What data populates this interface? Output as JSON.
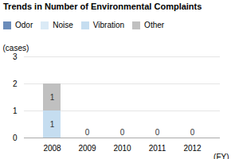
{
  "chart_data": {
    "type": "bar",
    "title": "Trends in Number of Environmental Complaints",
    "y_label": "(cases)",
    "x_label": "(FY)",
    "categories": [
      "2008",
      "2009",
      "2010",
      "2011",
      "2012"
    ],
    "series": [
      {
        "name": "Odor",
        "color": "#6b8cba",
        "values": [
          0,
          0,
          0,
          0,
          0
        ]
      },
      {
        "name": "Noise",
        "color": "#daeaf6",
        "values": [
          0,
          0,
          0,
          0,
          0
        ]
      },
      {
        "name": "Vibration",
        "color": "#c5ddf0",
        "values": [
          1,
          0,
          0,
          0,
          0
        ]
      },
      {
        "name": "Other",
        "color": "#c0c0c0",
        "values": [
          1,
          0,
          0,
          0,
          0
        ]
      }
    ],
    "totals": [
      null,
      0,
      0,
      0,
      0
    ],
    "stacked": true,
    "data_labels": true,
    "ylim": [
      0,
      3
    ],
    "yticks": [
      0,
      1,
      2,
      3
    ],
    "grid": true,
    "legend": "upper right"
  }
}
